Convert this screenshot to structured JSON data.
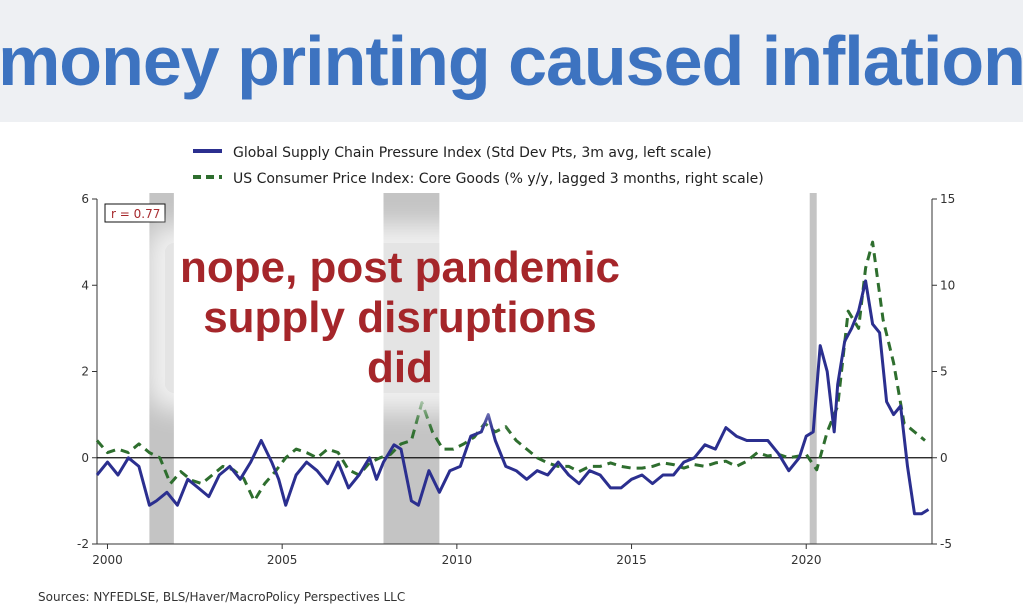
{
  "headline": "money printing caused  inflation",
  "overlay": {
    "line1": "nope, post pandemic",
    "line2": "supply disruptions did"
  },
  "sources": "Sources:  NYFEDLSE, BLS/Haver/MacroPolicy Perspectives LLC",
  "colors": {
    "headline": "#3d73c0",
    "overlay": "#a5262a",
    "gscpi": "#2b2f8f",
    "cpi": "#2e6e2e",
    "recession": "#c4c4c4"
  },
  "chart_data": {
    "type": "line",
    "correlation_label": "r = 0.77",
    "xlim": [
      1999.7,
      2023.6
    ],
    "x_ticks": [
      2000,
      2005,
      2010,
      2015,
      2020
    ],
    "left_axis": {
      "ylim": [
        -2,
        6
      ],
      "ticks": [
        -2,
        0,
        2,
        4,
        6
      ]
    },
    "right_axis": {
      "ylim": [
        -5,
        15
      ],
      "ticks": [
        -5,
        0,
        5,
        10,
        15
      ]
    },
    "recessions": [
      [
        2001.2,
        2001.9
      ],
      [
        2007.9,
        2009.5
      ],
      [
        2020.1,
        2020.3
      ]
    ],
    "series": [
      {
        "name": "Global Supply Chain Pressure Index (Std Dev Pts, 3m avg, left scale)",
        "axis": "left",
        "style": "solid",
        "x": [
          1999.7,
          2000.0,
          2000.3,
          2000.6,
          2000.9,
          2001.2,
          2001.4,
          2001.7,
          2002.0,
          2002.3,
          2002.6,
          2002.9,
          2003.2,
          2003.5,
          2003.8,
          2004.1,
          2004.4,
          2004.7,
          2004.9,
          2005.1,
          2005.4,
          2005.7,
          2006.0,
          2006.3,
          2006.6,
          2006.9,
          2007.2,
          2007.5,
          2007.7,
          2007.9,
          2008.2,
          2008.4,
          2008.7,
          2008.9,
          2009.2,
          2009.5,
          2009.8,
          2010.1,
          2010.4,
          2010.7,
          2010.9,
          2011.1,
          2011.4,
          2011.7,
          2012.0,
          2012.3,
          2012.6,
          2012.9,
          2013.2,
          2013.5,
          2013.8,
          2014.1,
          2014.4,
          2014.7,
          2015.0,
          2015.3,
          2015.6,
          2015.9,
          2016.2,
          2016.5,
          2016.8,
          2017.1,
          2017.4,
          2017.7,
          2018.0,
          2018.3,
          2018.6,
          2018.9,
          2019.2,
          2019.5,
          2019.8,
          2020.0,
          2020.2,
          2020.4,
          2020.6,
          2020.8,
          2020.9,
          2021.1,
          2021.3,
          2021.5,
          2021.7,
          2021.9,
          2022.1,
          2022.3,
          2022.5,
          2022.7,
          2022.9,
          2023.1,
          2023.3,
          2023.5
        ],
        "y": [
          -0.4,
          -0.1,
          -0.4,
          0.0,
          -0.2,
          -1.1,
          -1.0,
          -0.8,
          -1.1,
          -0.5,
          -0.7,
          -0.9,
          -0.4,
          -0.2,
          -0.5,
          -0.1,
          0.4,
          -0.1,
          -0.5,
          -1.1,
          -0.4,
          -0.1,
          -0.3,
          -0.6,
          -0.1,
          -0.7,
          -0.4,
          0.0,
          -0.5,
          -0.1,
          0.3,
          0.2,
          -1.0,
          -1.1,
          -0.3,
          -0.8,
          -0.3,
          -0.2,
          0.5,
          0.6,
          1.0,
          0.4,
          -0.2,
          -0.3,
          -0.5,
          -0.3,
          -0.4,
          -0.1,
          -0.4,
          -0.6,
          -0.3,
          -0.4,
          -0.7,
          -0.7,
          -0.5,
          -0.4,
          -0.6,
          -0.4,
          -0.4,
          -0.1,
          0.0,
          0.3,
          0.2,
          0.7,
          0.5,
          0.4,
          0.4,
          0.4,
          0.1,
          -0.3,
          0.0,
          0.5,
          0.6,
          2.6,
          2.0,
          0.6,
          1.7,
          2.7,
          3.0,
          3.4,
          4.1,
          3.1,
          2.9,
          1.3,
          1.0,
          1.2,
          -0.2,
          -1.3,
          -1.3,
          -1.2
        ]
      },
      {
        "name": "US Consumer Price Index: Core Goods (% y/y, lagged 3 months, right scale)",
        "axis": "right",
        "style": "dashed",
        "x": [
          1999.7,
          2000.0,
          2000.3,
          2000.6,
          2000.9,
          2001.2,
          2001.5,
          2001.8,
          2002.1,
          2002.4,
          2002.7,
          2003.0,
          2003.3,
          2003.6,
          2003.9,
          2004.2,
          2004.5,
          2004.8,
          2005.1,
          2005.4,
          2005.7,
          2006.0,
          2006.3,
          2006.6,
          2006.9,
          2007.2,
          2007.5,
          2007.8,
          2008.1,
          2008.4,
          2008.7,
          2009.0,
          2009.3,
          2009.6,
          2009.9,
          2010.2,
          2010.5,
          2010.8,
          2011.1,
          2011.4,
          2011.7,
          2012.0,
          2012.3,
          2012.6,
          2012.9,
          2013.2,
          2013.5,
          2013.8,
          2014.1,
          2014.4,
          2014.7,
          2015.0,
          2015.3,
          2015.6,
          2015.9,
          2016.2,
          2016.5,
          2016.8,
          2017.1,
          2017.4,
          2017.7,
          2018.0,
          2018.3,
          2018.6,
          2018.9,
          2019.2,
          2019.5,
          2019.8,
          2020.0,
          2020.3,
          2020.6,
          2020.9,
          2021.2,
          2021.5,
          2021.7,
          2021.9,
          2022.2,
          2022.5,
          2022.8,
          2023.1,
          2023.4
        ],
        "y": [
          1.0,
          0.3,
          0.5,
          0.3,
          0.8,
          0.3,
          0.0,
          -1.5,
          -0.8,
          -1.3,
          -1.5,
          -1.0,
          -0.5,
          -0.7,
          -1.2,
          -2.5,
          -1.5,
          -0.8,
          0.0,
          0.5,
          0.3,
          0.0,
          0.5,
          0.3,
          -0.7,
          -1.0,
          -0.3,
          0.0,
          0.2,
          0.8,
          1.0,
          3.2,
          1.5,
          0.5,
          0.5,
          0.8,
          1.2,
          2.0,
          1.5,
          1.8,
          1.0,
          0.5,
          0.0,
          -0.3,
          -0.5,
          -0.5,
          -0.8,
          -0.5,
          -0.5,
          -0.3,
          -0.5,
          -0.6,
          -0.6,
          -0.5,
          -0.3,
          -0.4,
          -0.6,
          -0.4,
          -0.5,
          -0.3,
          -0.2,
          -0.5,
          -0.2,
          0.3,
          0.1,
          0.2,
          0.0,
          0.1,
          0.2,
          -0.7,
          1.5,
          3.0,
          8.5,
          7.5,
          11.0,
          12.5,
          8.0,
          5.5,
          2.0,
          1.5,
          1.0
        ]
      }
    ],
    "title": "",
    "xlabel": "",
    "ylabel": "",
    "grid": false,
    "legend_position": "top"
  }
}
